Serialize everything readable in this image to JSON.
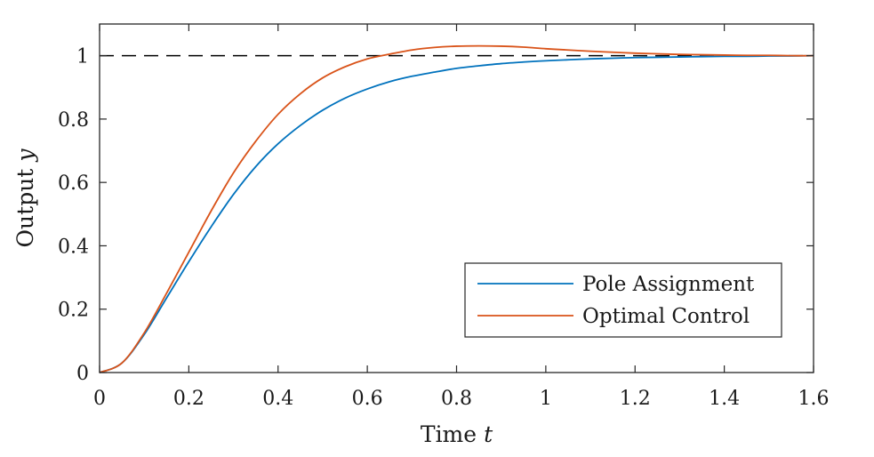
{
  "chart_data": {
    "type": "line",
    "title": "",
    "xlabel": "Time",
    "xlabel_var": "t",
    "ylabel": "Output",
    "ylabel_var": "y",
    "xlim": [
      0,
      1.6
    ],
    "ylim": [
      0,
      1.1
    ],
    "xticks": [
      0,
      0.2,
      0.4,
      0.6,
      0.8,
      1,
      1.2,
      1.4,
      1.6
    ],
    "xtick_labels": [
      "0",
      "0.2",
      "0.4",
      "0.6",
      "0.8",
      "1",
      "1.2",
      "1.4",
      "1.6"
    ],
    "yticks": [
      0,
      0.2,
      0.4,
      0.6,
      0.8,
      1
    ],
    "ytick_labels": [
      "0",
      "0.2",
      "0.4",
      "0.6",
      "0.8",
      "1"
    ],
    "grid": false,
    "legend_position": "bottom-right",
    "reference_line": {
      "y": 1,
      "style": "dashed",
      "color": "#000000"
    },
    "series": [
      {
        "name": "Pole Assignment",
        "color": "#0072BD",
        "x": [
          0,
          0.05,
          0.1,
          0.15,
          0.2,
          0.25,
          0.3,
          0.35,
          0.4,
          0.45,
          0.5,
          0.55,
          0.6,
          0.65,
          0.7,
          0.75,
          0.8,
          0.85,
          0.9,
          0.95,
          1.0,
          1.05,
          1.1,
          1.15,
          1.2,
          1.25,
          1.3,
          1.35,
          1.4,
          1.45,
          1.5,
          1.55,
          1.6
        ],
        "y": [
          0,
          0.03,
          0.12,
          0.235,
          0.35,
          0.46,
          0.562,
          0.65,
          0.722,
          0.78,
          0.828,
          0.866,
          0.895,
          0.918,
          0.935,
          0.948,
          0.96,
          0.968,
          0.975,
          0.98,
          0.984,
          0.987,
          0.99,
          0.992,
          0.994,
          0.995,
          0.996,
          0.997,
          0.998,
          0.998,
          0.999,
          0.999,
          1.0
        ]
      },
      {
        "name": "Optimal Control",
        "color": "#D95319",
        "x": [
          0,
          0.05,
          0.1,
          0.15,
          0.2,
          0.25,
          0.3,
          0.35,
          0.4,
          0.45,
          0.5,
          0.55,
          0.6,
          0.65,
          0.7,
          0.75,
          0.8,
          0.85,
          0.9,
          0.95,
          1.0,
          1.05,
          1.1,
          1.15,
          1.2,
          1.25,
          1.3,
          1.35,
          1.4,
          1.45,
          1.5,
          1.55,
          1.6
        ],
        "y": [
          0,
          0.03,
          0.125,
          0.25,
          0.38,
          0.51,
          0.63,
          0.73,
          0.815,
          0.88,
          0.93,
          0.965,
          0.99,
          1.005,
          1.018,
          1.026,
          1.03,
          1.031,
          1.03,
          1.027,
          1.022,
          1.018,
          1.014,
          1.011,
          1.008,
          1.006,
          1.004,
          1.003,
          1.002,
          1.001,
          1.001,
          1.0,
          1.0
        ]
      }
    ]
  }
}
